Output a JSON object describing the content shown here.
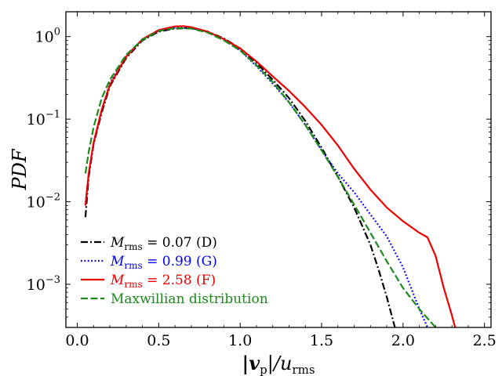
{
  "chart_data": {
    "type": "line",
    "yscale": "log",
    "xlabel": {
      "main": "|v",
      "sub": "p",
      "mid": "|/u",
      "sub2": "rms"
    },
    "ylabel": "PDF",
    "xlim": [
      -0.07,
      2.54
    ],
    "ylim": [
      0.0003,
      2.0
    ],
    "xticks": [
      0.0,
      0.5,
      1.0,
      1.5,
      2.0,
      2.5
    ],
    "xtick_labels": [
      "0.0",
      "0.5",
      "1.0",
      "1.5",
      "2.0",
      "2.5"
    ],
    "yticks": [
      1.0,
      0.1,
      0.01,
      0.001
    ],
    "ytick_labels": [
      {
        "base": "10",
        "exp": "0"
      },
      {
        "base": "10",
        "exp": "−1"
      },
      {
        "base": "10",
        "exp": "−2"
      },
      {
        "base": "10",
        "exp": "−3"
      }
    ],
    "legend_position": "lower-left",
    "series": [
      {
        "name": "D",
        "label": {
          "sym": "M",
          "sub": "rms",
          "rest": " = 0.07 (D)"
        },
        "color": "#000000",
        "dash": "dashdot",
        "x": [
          0.05,
          0.07,
          0.1,
          0.15,
          0.2,
          0.3,
          0.4,
          0.5,
          0.6,
          0.7,
          0.8,
          0.9,
          1.0,
          1.1,
          1.2,
          1.3,
          1.4,
          1.5,
          1.6,
          1.7,
          1.8,
          1.85,
          1.9,
          1.95
        ],
        "y": [
          0.0065,
          0.02,
          0.05,
          0.12,
          0.25,
          0.55,
          0.9,
          1.15,
          1.25,
          1.27,
          1.15,
          0.95,
          0.72,
          0.48,
          0.3,
          0.18,
          0.095,
          0.045,
          0.02,
          0.0085,
          0.003,
          0.0015,
          0.0007,
          0.0003
        ]
      },
      {
        "name": "G",
        "label": {
          "sym": "M",
          "sub": "rms",
          "rest": " = 0.99 (G)"
        },
        "color": "#0000ee",
        "dash": "dotted",
        "x": [
          0.05,
          0.07,
          0.1,
          0.15,
          0.2,
          0.3,
          0.4,
          0.5,
          0.6,
          0.7,
          0.8,
          0.9,
          1.0,
          1.1,
          1.2,
          1.3,
          1.4,
          1.5,
          1.6,
          1.7,
          1.8,
          1.9,
          2.0,
          2.1,
          2.15
        ],
        "y": [
          0.009,
          0.022,
          0.05,
          0.13,
          0.27,
          0.58,
          0.93,
          1.17,
          1.28,
          1.27,
          1.15,
          0.92,
          0.68,
          0.44,
          0.27,
          0.16,
          0.085,
          0.042,
          0.022,
          0.013,
          0.007,
          0.0038,
          0.0016,
          0.0005,
          0.0003
        ]
      },
      {
        "name": "F",
        "label": {
          "sym": "M",
          "sub": "rms",
          "rest": " = 2.58 (F)"
        },
        "color": "#ee0000",
        "dash": "solid",
        "x": [
          0.05,
          0.07,
          0.1,
          0.15,
          0.2,
          0.3,
          0.4,
          0.5,
          0.6,
          0.65,
          0.7,
          0.8,
          0.9,
          1.0,
          1.1,
          1.2,
          1.3,
          1.4,
          1.5,
          1.6,
          1.7,
          1.8,
          1.9,
          2.0,
          2.1,
          2.15,
          2.2,
          2.25,
          2.3,
          2.32
        ],
        "y": [
          0.009,
          0.022,
          0.052,
          0.13,
          0.26,
          0.57,
          0.93,
          1.2,
          1.33,
          1.34,
          1.3,
          1.15,
          0.93,
          0.72,
          0.5,
          0.33,
          0.22,
          0.14,
          0.085,
          0.048,
          0.025,
          0.014,
          0.0085,
          0.0058,
          0.0042,
          0.0037,
          0.0022,
          0.0009,
          0.00042,
          0.0003
        ]
      },
      {
        "name": "Maxwellian",
        "label": {
          "sym": "",
          "sub": "",
          "rest": "Maxwillian distribution"
        },
        "color": "#1a8a1a",
        "dash": "dashed",
        "x": [
          0.05,
          0.07,
          0.1,
          0.15,
          0.2,
          0.3,
          0.4,
          0.5,
          0.6,
          0.7,
          0.8,
          0.9,
          1.0,
          1.1,
          1.2,
          1.3,
          1.4,
          1.5,
          1.6,
          1.7,
          1.8,
          1.9,
          2.0,
          2.1,
          2.2
        ],
        "y": [
          0.022,
          0.04,
          0.08,
          0.18,
          0.3,
          0.6,
          0.92,
          1.17,
          1.27,
          1.25,
          1.12,
          0.9,
          0.68,
          0.45,
          0.28,
          0.16,
          0.085,
          0.042,
          0.02,
          0.0092,
          0.0042,
          0.0019,
          0.0009,
          0.0005,
          0.0003
        ]
      }
    ]
  }
}
